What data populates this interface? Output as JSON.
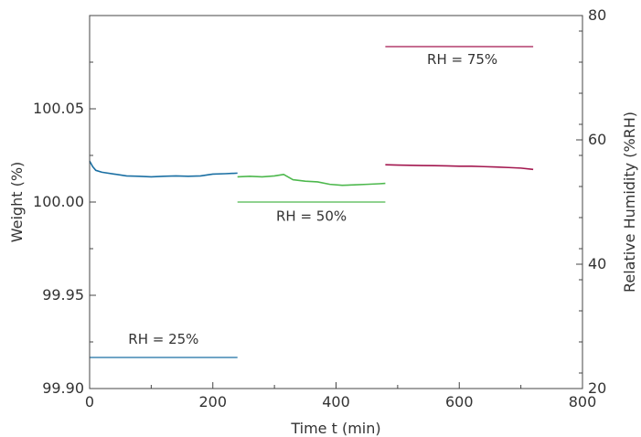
{
  "chart_data": {
    "type": "line",
    "xlabel": "Time t (min)",
    "ylabel": "Weight (%)",
    "y2label": "Relative Humidity (%RH)",
    "xlim": [
      0,
      800
    ],
    "ylim": [
      99.9,
      100.1
    ],
    "y2lim": [
      20,
      80
    ],
    "xticks": [
      "0",
      "200",
      "400",
      "600",
      "800"
    ],
    "yticks": [
      "99.90",
      "99.95",
      "100.00",
      "100.05"
    ],
    "y2ticks": [
      "20",
      "40",
      "60",
      "80"
    ],
    "grid": false,
    "series": [
      {
        "axis": "left",
        "color": "#1a6fa3",
        "x": [
          0,
          5,
          10,
          20,
          40,
          60,
          80,
          100,
          120,
          140,
          160,
          180,
          200,
          220,
          240
        ],
        "y": [
          100.022,
          100.019,
          100.017,
          100.016,
          100.015,
          100.014,
          100.0138,
          100.0135,
          100.0138,
          100.014,
          100.0138,
          100.014,
          100.015,
          100.0152,
          100.0155
        ]
      },
      {
        "axis": "left",
        "color": "#4db84d",
        "x": [
          240,
          260,
          280,
          300,
          315,
          330,
          350,
          370,
          390,
          410,
          430,
          450,
          470,
          480
        ],
        "y": [
          100.0135,
          100.0138,
          100.0135,
          100.014,
          100.0148,
          100.012,
          100.0112,
          100.0108,
          100.0095,
          100.009,
          100.0092,
          100.0095,
          100.0098,
          100.01
        ]
      },
      {
        "axis": "left",
        "color": "#a3174f",
        "x": [
          480,
          500,
          520,
          540,
          560,
          580,
          600,
          620,
          640,
          660,
          680,
          700,
          720
        ],
        "y": [
          100.02,
          100.0198,
          100.0197,
          100.0196,
          100.0195,
          100.0194,
          100.0192,
          100.0192,
          100.019,
          100.0188,
          100.0185,
          100.0182,
          100.0175
        ]
      },
      {
        "axis": "right",
        "color": "#1a6fa3",
        "x": [
          0,
          240
        ],
        "y": [
          25,
          25
        ]
      },
      {
        "axis": "right",
        "color": "#4db84d",
        "x": [
          240,
          480
        ],
        "y": [
          50,
          50
        ]
      },
      {
        "axis": "right",
        "color": "#a3174f",
        "x": [
          480,
          720
        ],
        "y": [
          75,
          75
        ]
      }
    ],
    "annotations": [
      {
        "text": "RH = 25%",
        "x": 120,
        "y2": 27.2
      },
      {
        "text": "RH = 50%",
        "x": 360,
        "y2": 47.0
      },
      {
        "text": "RH = 75%",
        "x": 605,
        "y2": 72.2
      }
    ]
  }
}
